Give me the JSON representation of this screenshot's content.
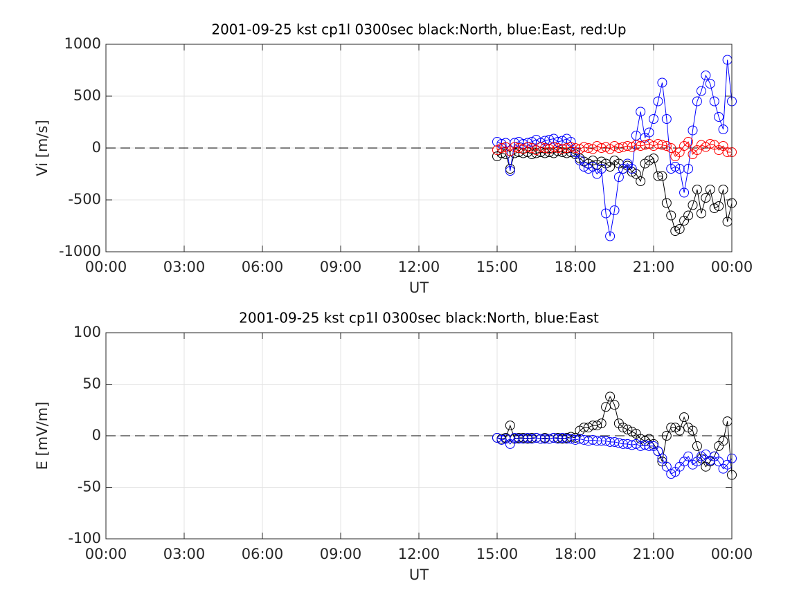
{
  "chart_data": [
    {
      "type": "line",
      "title": "2001-09-25 kst cp1l 0300sec black:North, blue:East, red:Up",
      "xlabel": "UT",
      "ylabel": "Vi [m/s]",
      "x": [
        15,
        15.17,
        15.33,
        15.5,
        15.67,
        15.83,
        16,
        16.17,
        16.33,
        16.5,
        16.67,
        16.83,
        17,
        17.17,
        17.33,
        17.5,
        17.67,
        17.83,
        18,
        18.17,
        18.33,
        18.5,
        18.67,
        18.83,
        19,
        19.17,
        19.33,
        19.5,
        19.67,
        19.83,
        20,
        20.17,
        20.33,
        20.5,
        20.67,
        20.83,
        21,
        21.17,
        21.33,
        21.5,
        21.67,
        21.83,
        22,
        22.17,
        22.33,
        22.5,
        22.67,
        22.83,
        23,
        23.17,
        23.33,
        23.5,
        23.67,
        23.83,
        24
      ],
      "series": [
        {
          "color": "#000000",
          "values": [
            -80,
            -50,
            -60,
            -200,
            -50,
            -40,
            -50,
            -40,
            -60,
            -50,
            -40,
            -50,
            -40,
            -50,
            -30,
            -40,
            -50,
            -40,
            -60,
            -100,
            -130,
            -150,
            -120,
            -160,
            -130,
            -150,
            -180,
            -120,
            -150,
            -200,
            -170,
            -230,
            -250,
            -320,
            -150,
            -120,
            -100,
            -270,
            -270,
            -530,
            -650,
            -800,
            -780,
            -700,
            -650,
            -550,
            -400,
            -630,
            -480,
            -400,
            -580,
            -560,
            -400,
            -710,
            -530
          ]
        },
        {
          "color": "#0000ff",
          "values": [
            60,
            40,
            50,
            -220,
            50,
            60,
            40,
            50,
            60,
            80,
            50,
            70,
            80,
            90,
            60,
            70,
            90,
            60,
            -40,
            -120,
            -180,
            -200,
            -180,
            -250,
            -200,
            -630,
            -850,
            -600,
            -280,
            -200,
            -150,
            -200,
            120,
            350,
            100,
            150,
            280,
            450,
            630,
            280,
            -200,
            -180,
            -200,
            -430,
            -200,
            170,
            450,
            550,
            700,
            620,
            450,
            300,
            180,
            850,
            450
          ]
        },
        {
          "color": "#ff0000",
          "values": [
            -20,
            0,
            10,
            -30,
            10,
            0,
            -10,
            10,
            0,
            -20,
            10,
            0,
            -10,
            10,
            0,
            -10,
            0,
            10,
            0,
            -10,
            10,
            0,
            -10,
            20,
            0,
            10,
            -10,
            20,
            0,
            10,
            20,
            10,
            30,
            20,
            30,
            40,
            20,
            40,
            30,
            20,
            0,
            -80,
            -40,
            20,
            60,
            -60,
            -20,
            30,
            10,
            40,
            30,
            -20,
            20,
            -40,
            -40
          ]
        }
      ],
      "xlim": [
        0,
        24
      ],
      "xticks": [
        {
          "value": 0,
          "label": "00:00"
        },
        {
          "value": 3,
          "label": "03:00"
        },
        {
          "value": 6,
          "label": "06:00"
        },
        {
          "value": 9,
          "label": "09:00"
        },
        {
          "value": 12,
          "label": "12:00"
        },
        {
          "value": 15,
          "label": "15:00"
        },
        {
          "value": 18,
          "label": "18:00"
        },
        {
          "value": 21,
          "label": "21:00"
        },
        {
          "value": 24,
          "label": "00:00"
        }
      ],
      "ylim": [
        -1000,
        1000
      ],
      "yticks": [
        -1000,
        -500,
        0,
        500,
        1000
      ],
      "grid": true
    },
    {
      "type": "line",
      "title": "2001-09-25 kst cp1l 0300sec black:North, blue:East",
      "xlabel": "UT",
      "ylabel": "E [mV/m]",
      "x": [
        15,
        15.17,
        15.33,
        15.5,
        15.67,
        15.83,
        16,
        16.17,
        16.33,
        16.5,
        16.67,
        16.83,
        17,
        17.17,
        17.33,
        17.5,
        17.67,
        17.83,
        18,
        18.17,
        18.33,
        18.5,
        18.67,
        18.83,
        19,
        19.17,
        19.33,
        19.5,
        19.67,
        19.83,
        20,
        20.17,
        20.33,
        20.5,
        20.67,
        20.83,
        21,
        21.17,
        21.33,
        21.5,
        21.67,
        21.83,
        22,
        22.17,
        22.33,
        22.5,
        22.67,
        22.83,
        23,
        23.17,
        23.33,
        23.5,
        23.67,
        23.83,
        24
      ],
      "series": [
        {
          "color": "#000000",
          "values": [
            -2,
            -3,
            -2,
            10,
            -3,
            -2,
            -2,
            -3,
            -2,
            -2,
            -3,
            -2,
            -3,
            -2,
            -2,
            -3,
            -2,
            -1,
            -2,
            5,
            8,
            8,
            10,
            10,
            12,
            28,
            38,
            30,
            12,
            8,
            6,
            4,
            2,
            -3,
            -5,
            -3,
            -8,
            -15,
            -25,
            0,
            8,
            8,
            5,
            18,
            8,
            5,
            -10,
            -22,
            -30,
            -25,
            -20,
            -10,
            -5,
            14,
            -38
          ]
        },
        {
          "color": "#0000ff",
          "values": [
            -2,
            -4,
            -3,
            -8,
            -2,
            -3,
            -3,
            -2,
            -3,
            -2,
            -3,
            -3,
            -3,
            -2,
            -3,
            -2,
            -3,
            -3,
            -4,
            -3,
            -4,
            -5,
            -4,
            -5,
            -5,
            -5,
            -6,
            -6,
            -7,
            -8,
            -8,
            -9,
            -8,
            -10,
            -9,
            -10,
            -10,
            -15,
            -22,
            -30,
            -37,
            -35,
            -30,
            -25,
            -20,
            -28,
            -25,
            -20,
            -18,
            -24,
            -20,
            -25,
            -32,
            -28,
            -22
          ]
        }
      ],
      "xlim": [
        0,
        24
      ],
      "xticks": [
        {
          "value": 0,
          "label": "00:00"
        },
        {
          "value": 3,
          "label": "03:00"
        },
        {
          "value": 6,
          "label": "06:00"
        },
        {
          "value": 9,
          "label": "09:00"
        },
        {
          "value": 12,
          "label": "12:00"
        },
        {
          "value": 15,
          "label": "15:00"
        },
        {
          "value": 18,
          "label": "18:00"
        },
        {
          "value": 21,
          "label": "21:00"
        },
        {
          "value": 24,
          "label": "00:00"
        }
      ],
      "ylim": [
        -100,
        100
      ],
      "yticks": [
        -100,
        -50,
        0,
        50,
        100
      ],
      "grid": true
    }
  ]
}
